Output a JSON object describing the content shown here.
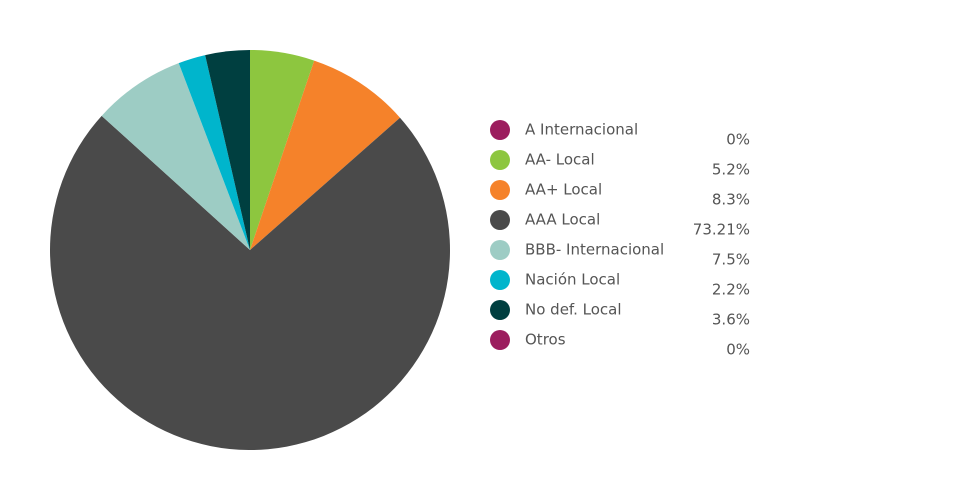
{
  "chart_data": {
    "type": "pie",
    "categories": [
      "A Internacional",
      "AA- Local",
      "AA+ Local",
      "AAA Local",
      "BBB- Internacional",
      "Nación Local",
      "No def. Local",
      "Otros"
    ],
    "values": [
      0,
      5.2,
      8.3,
      73.21,
      7.5,
      2.2,
      3.6,
      0
    ],
    "value_labels": [
      "0%",
      "5.2%",
      "8.3%",
      "73.21%",
      "7.5%",
      "2.2%",
      "3.6%",
      "0%"
    ],
    "colors": [
      "#9c1d5e",
      "#8dc63f",
      "#f5822a",
      "#4a4a4a",
      "#9dccc4",
      "#00b5cc",
      "#003f40",
      "#9c1d5e"
    ],
    "legend": "right"
  }
}
